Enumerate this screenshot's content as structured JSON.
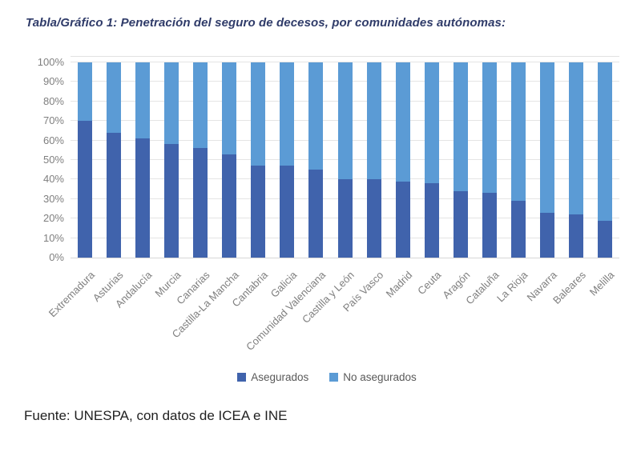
{
  "title": "Tabla/Gráfico 1: Penetración del seguro de decesos, por comunidades autónomas:",
  "source_note": "Fuente: UNESPA, con datos de ICEA e INE",
  "legend": {
    "items": [
      {
        "label": "Asegurados",
        "color": "#4063AC"
      },
      {
        "label": "No asegurados",
        "color": "#5B9BD5"
      }
    ],
    "position": "bottom-center"
  },
  "colors": {
    "asegurados": "#4063AC",
    "no_asegurados": "#5B9BD5",
    "title_text": "#2F3B69",
    "axis_text": "#7F7F7F",
    "legend_text": "#595959",
    "gridline": "#E4E4E4"
  },
  "chart_data": {
    "type": "bar",
    "stacked": true,
    "stacked_to_100_percent": true,
    "title": "Tabla/Gráfico 1: Penetración del seguro de decesos, por comunidades autónomas:",
    "xlabel": "",
    "ylabel": "",
    "ylim": [
      0,
      100
    ],
    "y_tick_step": 10,
    "y_tick_labels": [
      "0%",
      "10%",
      "20%",
      "30%",
      "40%",
      "50%",
      "60%",
      "70%",
      "80%",
      "90%",
      "100%"
    ],
    "grid": true,
    "categories": [
      "Extremadura",
      "Asturias",
      "Andalucía",
      "Murcia",
      "Canarias",
      "Castilla-La Mancha",
      "Cantabria",
      "Galicia",
      "Comunidad Valenciana",
      "Castilla y León",
      "País Vasco",
      "Madrid",
      "Ceuta",
      "Aragón",
      "Cataluña",
      "La Rioja",
      "Navarra",
      "Baleares",
      "Melilla"
    ],
    "series": [
      {
        "name": "Asegurados",
        "color": "#4063AC",
        "values": [
          70,
          64,
          61,
          58,
          56,
          53,
          47,
          47,
          45,
          40,
          40,
          39,
          38,
          34,
          33,
          29,
          23,
          22,
          19
        ]
      },
      {
        "name": "No asegurados",
        "color": "#5B9BD5",
        "values": [
          30,
          36,
          39,
          42,
          44,
          47,
          53,
          53,
          55,
          60,
          60,
          61,
          62,
          66,
          67,
          71,
          77,
          78,
          81
        ]
      }
    ]
  }
}
